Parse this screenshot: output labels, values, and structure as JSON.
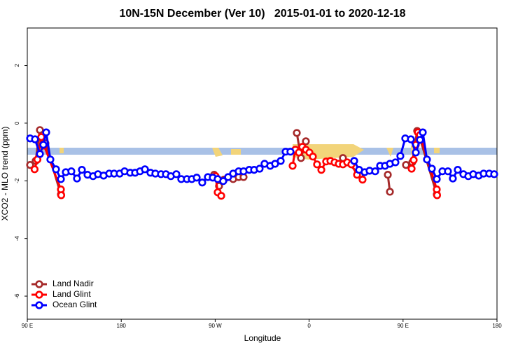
{
  "chart_data": {
    "type": "line",
    "title": "10N-15N December (Ver 10)   2015-01-01 to 2020-12-18",
    "xlabel": "Longitude",
    "ylabel": "XCO2 - MLO trend (ppm)",
    "xlim": [
      90,
      540
    ],
    "xticks": [
      {
        "value": 90,
        "label": "90 E"
      },
      180,
      {
        "value": 270,
        "label": "90 W"
      },
      {
        "value": 360,
        "label": "0"
      },
      {
        "value": 450,
        "label": "90 E"
      },
      {
        "value": 540,
        "label": "180"
      }
    ],
    "ylim": [
      -6.8,
      3.3
    ],
    "yticks": [
      2,
      0,
      -2,
      -4,
      -6
    ],
    "legend": "bottom-left",
    "series": [
      {
        "name": "Land Nadir",
        "color": "#a52a2a",
        "x": [
          92.7,
          98.0,
          102.1,
          104.8,
          107.4,
          122.2,
          null,
          269.0,
          273.7,
          278.4,
          287.2,
          292.5,
          297.2,
          null,
          348.2,
          352.2,
          356.9,
          null,
          392.4,
          408.5,
          null,
          435.4,
          437.4,
          null,
          452.8,
          458.8,
          463.5,
          466.2,
          482.3
        ],
        "values": [
          -1.45,
          -1.31,
          -0.24,
          -0.41,
          -0.7,
          -2.47,
          null,
          -1.79,
          -2.18,
          -1.96,
          -1.94,
          -1.87,
          -1.87,
          null,
          -0.34,
          -1.21,
          -0.63,
          null,
          -1.21,
          -1.79,
          null,
          -1.79,
          -2.38,
          null,
          -1.45,
          -1.36,
          -0.27,
          -0.53,
          -2.47
        ]
      },
      {
        "name": "Land Glint",
        "color": "#ff0000",
        "x": [
          97.0,
          99.7,
          103.4,
          106.1,
          122.2,
          122.5,
          null,
          270.4,
          272.4,
          275.8,
          null,
          344.2,
          346.8,
          350.2,
          353.5,
          356.9,
          360.3,
          363.6,
          367.6,
          371.7,
          376.3,
          380.4,
          384.4,
          388.4,
          392.4,
          396.5,
          400.5,
          405.9,
          411.2,
          null,
          458.2,
          460.2,
          462.2,
          464.2,
          466.2,
          482.3,
          482.6
        ],
        "values": [
          -1.6,
          -1.26,
          -0.48,
          -0.78,
          -2.3,
          -2.5,
          null,
          -1.84,
          -2.4,
          -2.52,
          null,
          -1.48,
          -0.92,
          -1.02,
          -0.82,
          -0.92,
          -1.02,
          -1.16,
          -1.43,
          -1.62,
          -1.33,
          -1.31,
          -1.36,
          -1.41,
          -1.43,
          -1.36,
          -1.43,
          -1.79,
          -1.96,
          null,
          -1.58,
          -1.28,
          -0.75,
          -0.32,
          -0.41,
          -2.3,
          -2.5
        ]
      },
      {
        "name": "Ocean Glint",
        "color": "#0000ff",
        "x": [
          92.7,
          97.4,
          102.1,
          105.4,
          108.1,
          112.1,
          117.5,
          122.2,
          126.9,
          132.2,
          137.6,
          142.3,
          147.7,
          153.0,
          157.7,
          163.1,
          168.5,
          173.2,
          178.5,
          183.2,
          188.6,
          193.3,
          198.0,
          202.7,
          208.0,
          212.7,
          218.1,
          222.8,
          227.5,
          232.8,
          237.5,
          242.9,
          247.6,
          252.3,
          257.6,
          263.0,
          267.7,
          272.4,
          277.7,
          282.4,
          287.2,
          292.5,
          297.2,
          302.6,
          307.3,
          312.6,
          317.3,
          322.7,
          327.4,
          332.8,
          337.5,
          342.1,
          null,
          403.2,
          407.9,
          413.2,
          417.9,
          423.3,
          428.0,
          432.7,
          437.4,
          442.7,
          447.4,
          452.1,
          457.5,
          462.2,
          466.2,
          468.9,
          472.9,
          477.6,
          482.3,
          487.7,
          493.0,
          497.7,
          502.4,
          507.8,
          512.5,
          517.2,
          522.5,
          527.2,
          532.6,
          537.3
        ],
        "values": [
          -0.53,
          -0.56,
          -1.07,
          -0.75,
          -0.32,
          -1.26,
          -1.6,
          -1.94,
          -1.7,
          -1.67,
          -1.92,
          -1.62,
          -1.79,
          -1.84,
          -1.77,
          -1.82,
          -1.75,
          -1.75,
          -1.75,
          -1.67,
          -1.72,
          -1.72,
          -1.67,
          -1.6,
          -1.72,
          -1.75,
          -1.77,
          -1.77,
          -1.84,
          -1.77,
          -1.94,
          -1.94,
          -1.94,
          -1.89,
          -2.06,
          -1.87,
          -1.89,
          -1.94,
          -2.01,
          -1.87,
          -1.75,
          -1.67,
          -1.67,
          -1.62,
          -1.62,
          -1.58,
          -1.41,
          -1.48,
          -1.41,
          -1.31,
          -0.99,
          -0.99,
          null,
          -1.31,
          -1.62,
          -1.7,
          -1.65,
          -1.67,
          -1.48,
          -1.48,
          -1.41,
          -1.36,
          -1.14,
          -0.53,
          -0.56,
          -1.02,
          -0.58,
          -0.32,
          -1.26,
          -1.58,
          -1.94,
          -1.67,
          -1.67,
          -1.92,
          -1.62,
          -1.77,
          -1.84,
          -1.77,
          -1.82,
          -1.75,
          -1.75,
          -1.77
        ]
      }
    ]
  }
}
